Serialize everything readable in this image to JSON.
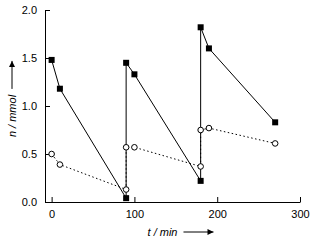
{
  "chart_data": {
    "type": "line",
    "x_label": "t / min",
    "y_label": "n / mmol",
    "xlim": [
      -8,
      300
    ],
    "xticks": [
      0,
      100,
      200,
      300
    ],
    "ylim": [
      0,
      2
    ],
    "yticks": [
      {
        "value": 0,
        "label": "0.0"
      },
      {
        "value": 0.5,
        "label": "0.5"
      },
      {
        "value": 1,
        "label": "1.0"
      },
      {
        "value": 1.5,
        "label": "1.5"
      },
      {
        "value": 2,
        "label": "2.0"
      }
    ],
    "series": [
      {
        "color": "#000000",
        "marker": "square",
        "line_style": "solid",
        "x": [
          0,
          10,
          90,
          90,
          100,
          180,
          180,
          190,
          270
        ],
        "values": [
          1.48,
          1.18,
          0.04,
          1.45,
          1.33,
          0.22,
          1.82,
          1.6,
          0.83
        ]
      },
      {
        "color": "#000000",
        "marker": "circle",
        "line_style": "dotted",
        "x": [
          0,
          10,
          90,
          90,
          100,
          180,
          180,
          190,
          270
        ],
        "values": [
          0.5,
          0.39,
          0.13,
          0.57,
          0.57,
          0.37,
          0.75,
          0.77,
          0.61
        ]
      }
    ]
  }
}
